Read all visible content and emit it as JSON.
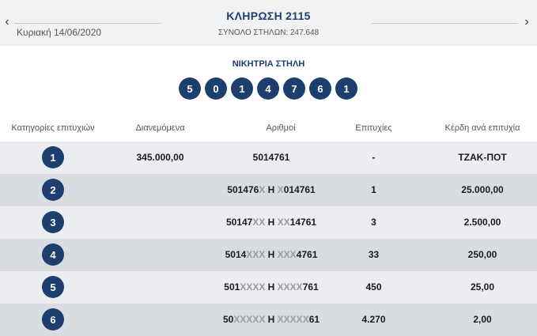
{
  "header": {
    "title": "ΚΛΗΡΩΣΗ 2115",
    "date": "Κυριακή 14/06/2020",
    "subtitle": "ΣΥΝΟΛΟ ΣΤΗΛΩΝ: 247.648",
    "prev_arrow": "‹",
    "next_arrow": "›"
  },
  "winning": {
    "label": "ΝΙΚΗΤΡΙΑ ΣΤΗΛΗ",
    "numbers": [
      "5",
      "0",
      "1",
      "4",
      "7",
      "6",
      "1"
    ]
  },
  "table": {
    "columns": [
      "Κατηγορίες επιτυχιών",
      "Διανεμόμενα",
      "Αριθμοί",
      "Επιτυχίες",
      "Κέρδη ανά επιτυχία"
    ],
    "rows": [
      {
        "category": "1",
        "distributed": "345.000,00",
        "numbers": {
          "a": "5014761",
          "ax": "",
          "sep": "",
          "bx": "",
          "b": ""
        },
        "wins": "-",
        "prize": "ΤΖΑΚ-ΠΟΤ"
      },
      {
        "category": "2",
        "distributed": "",
        "numbers": {
          "a": "501476",
          "ax": "X",
          "sep": " Η ",
          "bx": "X",
          "b": "014761"
        },
        "wins": "1",
        "prize": "25.000,00"
      },
      {
        "category": "3",
        "distributed": "",
        "numbers": {
          "a": "50147",
          "ax": "XX",
          "sep": " Η ",
          "bx": "XX",
          "b": "14761"
        },
        "wins": "3",
        "prize": "2.500,00"
      },
      {
        "category": "4",
        "distributed": "",
        "numbers": {
          "a": "5014",
          "ax": "XXX",
          "sep": " Η ",
          "bx": "XXX",
          "b": "4761"
        },
        "wins": "33",
        "prize": "250,00"
      },
      {
        "category": "5",
        "distributed": "",
        "numbers": {
          "a": "501",
          "ax": "XXXX",
          "sep": " Η ",
          "bx": "XXXX",
          "b": "761"
        },
        "wins": "450",
        "prize": "25,00"
      },
      {
        "category": "6",
        "distributed": "",
        "numbers": {
          "a": "50",
          "ax": "XXXXX",
          "sep": " Η ",
          "bx": "XXXXX",
          "b": "61"
        },
        "wins": "4.270",
        "prize": "2,00"
      }
    ]
  },
  "colors": {
    "accent": "#1c3f6e",
    "header_bg": "#f1f2f4",
    "row_odd": "#ebedf0",
    "row_even": "#d9dce1",
    "masked_digit": "#9a9a9a"
  },
  "icons": {
    "prev": "chevron-left-icon",
    "next": "chevron-right-icon"
  }
}
